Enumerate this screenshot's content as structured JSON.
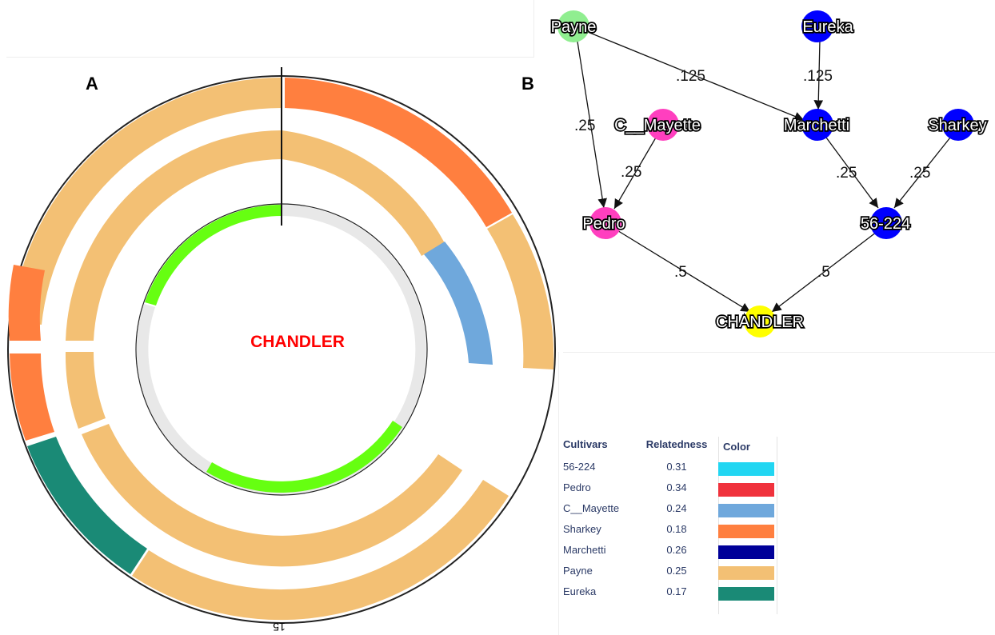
{
  "panel_a": {
    "label": "A",
    "center_label": "CHANDLER",
    "center_label_color": "#ff0000",
    "bottom_tick_label": "15",
    "rings": {
      "outer": {
        "segments": [
          {
            "color": "#ff7f3f",
            "name": "Sharkey"
          },
          {
            "color": "#f3c074",
            "name": "Payne"
          },
          {
            "color": "#1a8a76",
            "name": "Eureka"
          }
        ]
      },
      "middle": {
        "segments": [
          {
            "color": "#f3c074",
            "name": "Payne"
          },
          {
            "color": "#6fa8dc",
            "name": "C__Mayette"
          }
        ]
      },
      "inner": {
        "segments": [
          {
            "color": "#66ff11",
            "name": "inner-green"
          },
          {
            "color": "#e8e8e8",
            "name": "inner-gray"
          }
        ]
      }
    }
  },
  "panel_b": {
    "label": "B",
    "nodes": [
      {
        "id": "payne",
        "label": "Payne",
        "color": "#90ee90"
      },
      {
        "id": "eureka",
        "label": "Eureka",
        "color": "#0000ff"
      },
      {
        "id": "c_mayette",
        "label": "C__Mayette",
        "color": "#ff3fbf"
      },
      {
        "id": "marchetti",
        "label": "Marchetti",
        "color": "#0000ff"
      },
      {
        "id": "sharkey",
        "label": "Sharkey",
        "color": "#0000ff"
      },
      {
        "id": "pedro",
        "label": "Pedro",
        "color": "#ff3fbf"
      },
      {
        "id": "n56_224",
        "label": "56-224",
        "color": "#0000ff"
      },
      {
        "id": "chandler",
        "label": "CHANDLER",
        "color": "#ffff00"
      }
    ],
    "edges": [
      {
        "from": "payne",
        "to": "marchetti",
        "label": ".125"
      },
      {
        "from": "eureka",
        "to": "marchetti",
        "label": ".125"
      },
      {
        "from": "payne",
        "to": "pedro",
        "label": ".25"
      },
      {
        "from": "c_mayette",
        "to": "pedro",
        "label": ".25"
      },
      {
        "from": "marchetti",
        "to": "n56_224",
        "label": ".25"
      },
      {
        "from": "sharkey",
        "to": "n56_224",
        "label": ".25"
      },
      {
        "from": "pedro",
        "to": "chandler",
        "label": ".5"
      },
      {
        "from": "n56_224",
        "to": "chandler",
        "label": ".5"
      }
    ]
  },
  "legend": {
    "headers": {
      "cultivars": "Cultivars",
      "relatedness": "Relatedness",
      "color": "Color"
    },
    "rows": [
      {
        "cultivar": "56-224",
        "relatedness": "0.31",
        "color": "#22d6f2"
      },
      {
        "cultivar": "Pedro",
        "relatedness": "0.34",
        "color": "#f0323c"
      },
      {
        "cultivar": "C__Mayette",
        "relatedness": "0.24",
        "color": "#6fa8dc"
      },
      {
        "cultivar": "Sharkey",
        "relatedness": "0.18",
        "color": "#ff7f3f"
      },
      {
        "cultivar": "Marchetti",
        "relatedness": "0.26",
        "color": "#000099"
      },
      {
        "cultivar": "Payne",
        "relatedness": "0.25",
        "color": "#f3c074"
      },
      {
        "cultivar": "Eureka",
        "relatedness": "0.17",
        "color": "#1a8a76"
      }
    ]
  }
}
